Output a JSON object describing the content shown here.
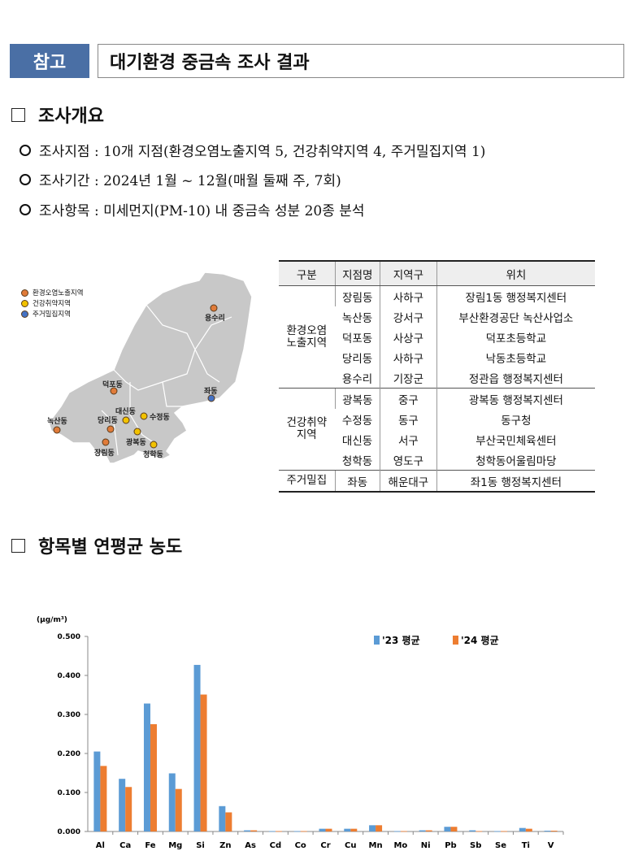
{
  "header": {
    "tag": "참고",
    "title": "대기환경 중금속 조사 결과"
  },
  "section1": {
    "title": "조사개요",
    "bullets": [
      "조사지점 : 10개 지점(환경오염노출지역 5, 건강취약지역 4, 주거밀집지역 1)",
      "조사기간 : 2024년 1월 ~ 12월(매월 둘째 주, 7회)",
      "조사항목 : 미세먼지(PM-10) 내 중금속 성분 20종 분석"
    ]
  },
  "map": {
    "legend": [
      {
        "label": "환경오염노출지역",
        "color": "#e07b39"
      },
      {
        "label": "건강취약지역",
        "color": "#f2c200"
      },
      {
        "label": "주거밀집지역",
        "color": "#4472c4"
      }
    ],
    "sites": [
      {
        "name": "용수리",
        "type": 0
      },
      {
        "name": "좌동",
        "type": 2
      },
      {
        "name": "덕포동",
        "type": 0
      },
      {
        "name": "대신동",
        "type": 1
      },
      {
        "name": "수정동",
        "type": 1
      },
      {
        "name": "당리동",
        "type": 0
      },
      {
        "name": "녹산동",
        "type": 0
      },
      {
        "name": "광복동",
        "type": 1
      },
      {
        "name": "장림동",
        "type": 0
      },
      {
        "name": "청학동",
        "type": 1
      }
    ]
  },
  "table": {
    "headers": [
      "구분",
      "지점명",
      "지역구",
      "위치"
    ],
    "groups": [
      {
        "name": "환경오염\n노출지역",
        "rows": [
          [
            "장림동",
            "사하구",
            "장림1동 행정복지센터"
          ],
          [
            "녹산동",
            "강서구",
            "부산환경공단 녹산사업소"
          ],
          [
            "덕포동",
            "사상구",
            "덕포초등학교"
          ],
          [
            "당리동",
            "사하구",
            "낙동초등학교"
          ],
          [
            "용수리",
            "기장군",
            "정관읍 행정복지센터"
          ]
        ]
      },
      {
        "name": "건강취약\n지역",
        "rows": [
          [
            "광복동",
            "중구",
            "광복동 행정복지센터"
          ],
          [
            "수정동",
            "동구",
            "동구청"
          ],
          [
            "대신동",
            "서구",
            "부산국민체육센터"
          ],
          [
            "청학동",
            "영도구",
            "청학동어울림마당"
          ]
        ]
      },
      {
        "name": "주거밀집",
        "rows": [
          [
            "좌동",
            "해운대구",
            "좌1동 행정복지센터"
          ]
        ]
      }
    ]
  },
  "section2": {
    "title": "항목별 연평균 농도"
  },
  "chart_data": {
    "type": "bar",
    "unit": "(μg/m³)",
    "ylim": [
      0,
      0.5
    ],
    "yticks": [
      "0.000",
      "0.100",
      "0.200",
      "0.300",
      "0.400",
      "0.500"
    ],
    "legend_placement": "top-right",
    "grid": false,
    "categories": [
      "Al",
      "Ca",
      "Fe",
      "Mg",
      "Si",
      "Zn",
      "As",
      "Cd",
      "Co",
      "Cr",
      "Cu",
      "Mn",
      "Mo",
      "Ni",
      "Pb",
      "Sb",
      "Se",
      "Ti",
      "V"
    ],
    "series": [
      {
        "name": "'23 평균",
        "color": "#5b9bd5",
        "values": [
          0.205,
          0.135,
          0.328,
          0.149,
          0.427,
          0.065,
          0.003,
          0.001,
          0.001,
          0.007,
          0.007,
          0.016,
          0.001,
          0.003,
          0.012,
          0.003,
          0.001,
          0.009,
          0.002
        ]
      },
      {
        "name": "'24 평균",
        "color": "#ed7d31",
        "values": [
          0.168,
          0.114,
          0.275,
          0.109,
          0.351,
          0.049,
          0.003,
          0.001,
          0.001,
          0.007,
          0.007,
          0.016,
          0.001,
          0.003,
          0.012,
          0.001,
          0.001,
          0.007,
          0.002
        ]
      }
    ]
  }
}
